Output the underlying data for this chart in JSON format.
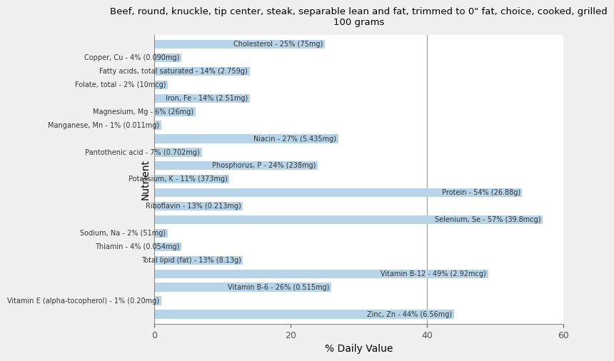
{
  "title": "Beef, round, knuckle, tip center, steak, separable lean and fat, trimmed to 0\" fat, choice, cooked, grilled\n100 grams",
  "xlabel": "% Daily Value",
  "ylabel": "Nutrient",
  "background_color": "#f0f0f0",
  "plot_bg_color": "#ffffff",
  "bar_color": "#b8d4e8",
  "xlim": [
    0,
    60
  ],
  "xticks": [
    0,
    20,
    40,
    60
  ],
  "nutrients": [
    {
      "label": "Cholesterol - 25% (75mg)",
      "value": 25
    },
    {
      "label": "Copper, Cu - 4% (0.090mg)",
      "value": 4
    },
    {
      "label": "Fatty acids, total saturated - 14% (2.759g)",
      "value": 14
    },
    {
      "label": "Folate, total - 2% (10mcg)",
      "value": 2
    },
    {
      "label": "Iron, Fe - 14% (2.51mg)",
      "value": 14
    },
    {
      "label": "Magnesium, Mg - 6% (26mg)",
      "value": 6
    },
    {
      "label": "Manganese, Mn - 1% (0.011mg)",
      "value": 1
    },
    {
      "label": "Niacin - 27% (5.435mg)",
      "value": 27
    },
    {
      "label": "Pantothenic acid - 7% (0.702mg)",
      "value": 7
    },
    {
      "label": "Phosphorus, P - 24% (238mg)",
      "value": 24
    },
    {
      "label": "Potassium, K - 11% (373mg)",
      "value": 11
    },
    {
      "label": "Protein - 54% (26.88g)",
      "value": 54
    },
    {
      "label": "Riboflavin - 13% (0.213mg)",
      "value": 13
    },
    {
      "label": "Selenium, Se - 57% (39.8mcg)",
      "value": 57
    },
    {
      "label": "Sodium, Na - 2% (51mg)",
      "value": 2
    },
    {
      "label": "Thiamin - 4% (0.054mg)",
      "value": 4
    },
    {
      "label": "Total lipid (fat) - 13% (8.13g)",
      "value": 13
    },
    {
      "label": "Vitamin B-12 - 49% (2.92mcg)",
      "value": 49
    },
    {
      "label": "Vitamin B-6 - 26% (0.515mg)",
      "value": 26
    },
    {
      "label": "Vitamin E (alpha-tocopherol) - 1% (0.20mg)",
      "value": 1
    },
    {
      "label": "Zinc, Zn - 44% (6.56mg)",
      "value": 44
    }
  ],
  "vline_x": 40,
  "vline_color": "#aaaaaa",
  "label_fontsize": 7,
  "title_fontsize": 9.5
}
